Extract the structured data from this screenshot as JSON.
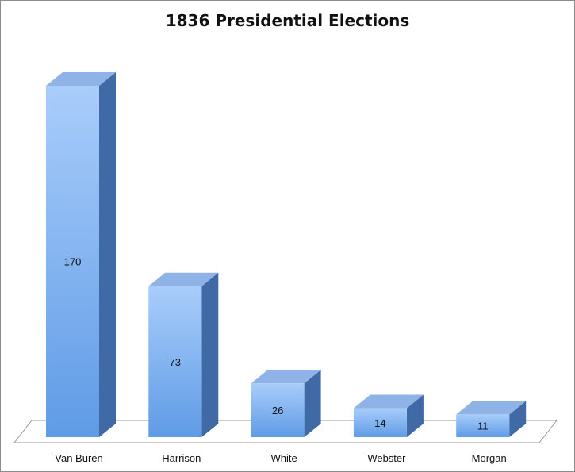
{
  "chart_data": {
    "type": "bar",
    "title": "1836 Presidential Elections",
    "xlabel": "",
    "ylabel": "",
    "categories": [
      "Van Buren",
      "Harrison",
      "White",
      "Webster",
      "Morgan"
    ],
    "values": [
      170,
      73,
      26,
      14,
      11
    ],
    "data_labels": [
      "170",
      "73",
      "26",
      "14",
      "11"
    ],
    "ylim": [
      0,
      170
    ],
    "grid": false,
    "legend": "none",
    "style": "3d-column",
    "colors": {
      "bar_front_top": "#a9cdfb",
      "bar_front_bottom": "#5f9be6",
      "bar_side": "#3f6aa6",
      "bar_top": "#8fb3e6",
      "floor_stroke": "#999999"
    }
  }
}
